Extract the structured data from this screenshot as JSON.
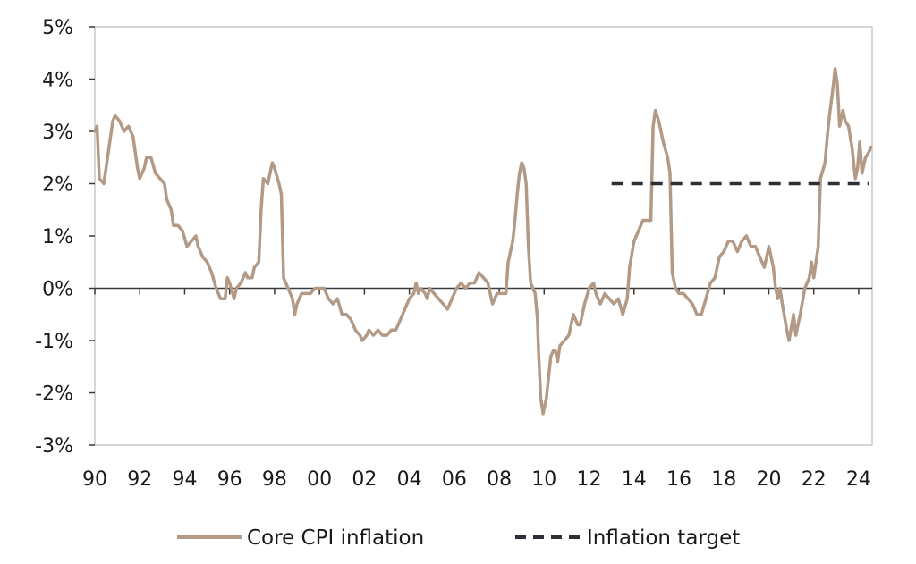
{
  "chart_data": {
    "type": "line",
    "title": "",
    "xlabel": "",
    "ylabel": "",
    "xlim": [
      1990,
      2024.6
    ],
    "ylim": [
      -3,
      5
    ],
    "grid": false,
    "legend_position": "bottom",
    "y_ticks": [
      {
        "value": 5,
        "label": "5%"
      },
      {
        "value": 4,
        "label": "4%"
      },
      {
        "value": 3,
        "label": "3%"
      },
      {
        "value": 2,
        "label": "2%"
      },
      {
        "value": 1,
        "label": "1%"
      },
      {
        "value": 0,
        "label": "0%"
      },
      {
        "value": -1,
        "label": "-1%"
      },
      {
        "value": -2,
        "label": "-2%"
      },
      {
        "value": -3,
        "label": "-3%"
      }
    ],
    "x_ticks": [
      {
        "value": 1990,
        "label": "90"
      },
      {
        "value": 1992,
        "label": "92"
      },
      {
        "value": 1994,
        "label": "94"
      },
      {
        "value": 1996,
        "label": "96"
      },
      {
        "value": 1998,
        "label": "98"
      },
      {
        "value": 2000,
        "label": "00"
      },
      {
        "value": 2002,
        "label": "02"
      },
      {
        "value": 2004,
        "label": "04"
      },
      {
        "value": 2006,
        "label": "06"
      },
      {
        "value": 2008,
        "label": "08"
      },
      {
        "value": 2010,
        "label": "10"
      },
      {
        "value": 2012,
        "label": "12"
      },
      {
        "value": 2014,
        "label": "14"
      },
      {
        "value": 2016,
        "label": "16"
      },
      {
        "value": 2018,
        "label": "18"
      },
      {
        "value": 2020,
        "label": "20"
      },
      {
        "value": 2022,
        "label": "22"
      },
      {
        "value": 2024,
        "label": "24"
      }
    ],
    "series": [
      {
        "name": "Core CPI inflation",
        "color": "#b29a86",
        "style": "solid",
        "points": [
          [
            1990.0,
            3.0
          ],
          [
            1990.1,
            3.1
          ],
          [
            1990.2,
            2.1
          ],
          [
            1990.4,
            2.0
          ],
          [
            1990.6,
            2.6
          ],
          [
            1990.8,
            3.2
          ],
          [
            1990.9,
            3.3
          ],
          [
            1991.1,
            3.2
          ],
          [
            1991.3,
            3.0
          ],
          [
            1991.5,
            3.1
          ],
          [
            1991.7,
            2.9
          ],
          [
            1991.9,
            2.3
          ],
          [
            1992.0,
            2.1
          ],
          [
            1992.2,
            2.3
          ],
          [
            1992.3,
            2.5
          ],
          [
            1992.5,
            2.5
          ],
          [
            1992.7,
            2.2
          ],
          [
            1992.9,
            2.1
          ],
          [
            1993.1,
            2.0
          ],
          [
            1993.2,
            1.7
          ],
          [
            1993.4,
            1.5
          ],
          [
            1993.5,
            1.2
          ],
          [
            1993.7,
            1.2
          ],
          [
            1993.9,
            1.1
          ],
          [
            1994.1,
            0.8
          ],
          [
            1994.3,
            0.9
          ],
          [
            1994.5,
            1.0
          ],
          [
            1994.6,
            0.8
          ],
          [
            1994.8,
            0.6
          ],
          [
            1995.0,
            0.5
          ],
          [
            1995.2,
            0.3
          ],
          [
            1995.4,
            0.0
          ],
          [
            1995.6,
            -0.2
          ],
          [
            1995.8,
            -0.2
          ],
          [
            1995.9,
            0.2
          ],
          [
            1996.0,
            0.1
          ],
          [
            1996.2,
            -0.2
          ],
          [
            1996.3,
            0.0
          ],
          [
            1996.5,
            0.1
          ],
          [
            1996.7,
            0.3
          ],
          [
            1996.8,
            0.2
          ],
          [
            1997.0,
            0.2
          ],
          [
            1997.1,
            0.4
          ],
          [
            1997.3,
            0.5
          ],
          [
            1997.4,
            1.5
          ],
          [
            1997.5,
            2.1
          ],
          [
            1997.7,
            2.0
          ],
          [
            1997.8,
            2.2
          ],
          [
            1997.9,
            2.4
          ],
          [
            1998.0,
            2.3
          ],
          [
            1998.2,
            2.0
          ],
          [
            1998.3,
            1.8
          ],
          [
            1998.4,
            0.2
          ],
          [
            1998.6,
            0.0
          ],
          [
            1998.8,
            -0.2
          ],
          [
            1998.9,
            -0.5
          ],
          [
            1999.0,
            -0.3
          ],
          [
            1999.2,
            -0.1
          ],
          [
            1999.4,
            -0.1
          ],
          [
            1999.6,
            -0.1
          ],
          [
            1999.8,
            0.0
          ],
          [
            2000.0,
            0.0
          ],
          [
            2000.2,
            0.0
          ],
          [
            2000.4,
            -0.2
          ],
          [
            2000.6,
            -0.3
          ],
          [
            2000.8,
            -0.2
          ],
          [
            2001.0,
            -0.5
          ],
          [
            2001.2,
            -0.5
          ],
          [
            2001.4,
            -0.6
          ],
          [
            2001.6,
            -0.8
          ],
          [
            2001.8,
            -0.9
          ],
          [
            2001.9,
            -1.0
          ],
          [
            2002.1,
            -0.9
          ],
          [
            2002.2,
            -0.8
          ],
          [
            2002.4,
            -0.9
          ],
          [
            2002.6,
            -0.8
          ],
          [
            2002.8,
            -0.9
          ],
          [
            2003.0,
            -0.9
          ],
          [
            2003.2,
            -0.8
          ],
          [
            2003.4,
            -0.8
          ],
          [
            2003.6,
            -0.6
          ],
          [
            2003.8,
            -0.4
          ],
          [
            2004.0,
            -0.2
          ],
          [
            2004.2,
            -0.1
          ],
          [
            2004.3,
            0.1
          ],
          [
            2004.4,
            -0.1
          ],
          [
            2004.5,
            0.0
          ],
          [
            2004.7,
            -0.1
          ],
          [
            2004.8,
            -0.2
          ],
          [
            2004.9,
            0.0
          ],
          [
            2005.1,
            -0.1
          ],
          [
            2005.3,
            -0.2
          ],
          [
            2005.5,
            -0.3
          ],
          [
            2005.7,
            -0.4
          ],
          [
            2005.9,
            -0.2
          ],
          [
            2006.1,
            0.0
          ],
          [
            2006.3,
            0.1
          ],
          [
            2006.5,
            0.0
          ],
          [
            2006.7,
            0.1
          ],
          [
            2006.9,
            0.1
          ],
          [
            2007.1,
            0.3
          ],
          [
            2007.3,
            0.2
          ],
          [
            2007.5,
            0.1
          ],
          [
            2007.7,
            -0.3
          ],
          [
            2007.9,
            -0.1
          ],
          [
            2008.1,
            -0.1
          ],
          [
            2008.3,
            -0.1
          ],
          [
            2008.4,
            0.5
          ],
          [
            2008.6,
            0.9
          ],
          [
            2008.7,
            1.3
          ],
          [
            2008.8,
            1.8
          ],
          [
            2008.9,
            2.2
          ],
          [
            2009.0,
            2.4
          ],
          [
            2009.1,
            2.3
          ],
          [
            2009.2,
            2.0
          ],
          [
            2009.3,
            0.8
          ],
          [
            2009.4,
            0.1
          ],
          [
            2009.6,
            -0.1
          ],
          [
            2009.7,
            -0.6
          ],
          [
            2009.75,
            -1.2
          ],
          [
            2009.85,
            -2.1
          ],
          [
            2009.95,
            -2.4
          ],
          [
            2010.1,
            -2.1
          ],
          [
            2010.2,
            -1.7
          ],
          [
            2010.3,
            -1.3
          ],
          [
            2010.4,
            -1.2
          ],
          [
            2010.5,
            -1.2
          ],
          [
            2010.6,
            -1.4
          ],
          [
            2010.7,
            -1.1
          ],
          [
            2010.9,
            -1.0
          ],
          [
            2011.1,
            -0.9
          ],
          [
            2011.3,
            -0.5
          ],
          [
            2011.5,
            -0.7
          ],
          [
            2011.6,
            -0.7
          ],
          [
            2011.8,
            -0.3
          ],
          [
            2012.0,
            0.0
          ],
          [
            2012.2,
            0.1
          ],
          [
            2012.3,
            -0.1
          ],
          [
            2012.5,
            -0.3
          ],
          [
            2012.7,
            -0.1
          ],
          [
            2012.9,
            -0.2
          ],
          [
            2013.1,
            -0.3
          ],
          [
            2013.3,
            -0.2
          ],
          [
            2013.5,
            -0.5
          ],
          [
            2013.7,
            -0.2
          ],
          [
            2013.8,
            0.4
          ],
          [
            2014.0,
            0.9
          ],
          [
            2014.2,
            1.1
          ],
          [
            2014.4,
            1.3
          ],
          [
            2014.6,
            1.3
          ],
          [
            2014.75,
            1.3
          ],
          [
            2014.85,
            3.1
          ],
          [
            2014.95,
            3.4
          ],
          [
            2015.1,
            3.2
          ],
          [
            2015.3,
            2.8
          ],
          [
            2015.5,
            2.5
          ],
          [
            2015.6,
            2.2
          ],
          [
            2015.7,
            0.3
          ],
          [
            2015.85,
            0.0
          ],
          [
            2016.0,
            -0.1
          ],
          [
            2016.2,
            -0.1
          ],
          [
            2016.4,
            -0.2
          ],
          [
            2016.6,
            -0.3
          ],
          [
            2016.8,
            -0.5
          ],
          [
            2017.0,
            -0.5
          ],
          [
            2017.2,
            -0.2
          ],
          [
            2017.4,
            0.1
          ],
          [
            2017.6,
            0.2
          ],
          [
            2017.8,
            0.6
          ],
          [
            2018.0,
            0.7
          ],
          [
            2018.2,
            0.9
          ],
          [
            2018.4,
            0.9
          ],
          [
            2018.6,
            0.7
          ],
          [
            2018.8,
            0.9
          ],
          [
            2019.0,
            1.0
          ],
          [
            2019.2,
            0.8
          ],
          [
            2019.4,
            0.8
          ],
          [
            2019.6,
            0.6
          ],
          [
            2019.8,
            0.4
          ],
          [
            2019.9,
            0.6
          ],
          [
            2020.0,
            0.8
          ],
          [
            2020.2,
            0.4
          ],
          [
            2020.3,
            0.0
          ],
          [
            2020.4,
            -0.2
          ],
          [
            2020.5,
            0.0
          ],
          [
            2020.6,
            -0.3
          ],
          [
            2020.8,
            -0.8
          ],
          [
            2020.9,
            -1.0
          ],
          [
            2021.1,
            -0.5
          ],
          [
            2021.2,
            -0.9
          ],
          [
            2021.4,
            -0.5
          ],
          [
            2021.6,
            0.0
          ],
          [
            2021.8,
            0.2
          ],
          [
            2021.9,
            0.5
          ],
          [
            2022.0,
            0.2
          ],
          [
            2022.1,
            0.5
          ],
          [
            2022.2,
            0.8
          ],
          [
            2022.3,
            2.1
          ],
          [
            2022.5,
            2.4
          ],
          [
            2022.6,
            2.9
          ],
          [
            2022.7,
            3.3
          ],
          [
            2022.85,
            3.8
          ],
          [
            2022.95,
            4.2
          ],
          [
            2023.05,
            3.9
          ],
          [
            2023.15,
            3.1
          ],
          [
            2023.3,
            3.4
          ],
          [
            2023.4,
            3.2
          ],
          [
            2023.55,
            3.1
          ],
          [
            2023.7,
            2.7
          ],
          [
            2023.85,
            2.1
          ],
          [
            2023.95,
            2.3
          ],
          [
            2024.05,
            2.8
          ],
          [
            2024.15,
            2.2
          ],
          [
            2024.3,
            2.5
          ],
          [
            2024.45,
            2.6
          ],
          [
            2024.55,
            2.7
          ]
        ]
      },
      {
        "name": "Inflation target",
        "color": "#2b2f36",
        "style": "dashed",
        "points": [
          [
            2013.0,
            2.0
          ],
          [
            2024.45,
            2.0
          ]
        ]
      }
    ]
  },
  "legend": {
    "items": [
      {
        "label": "Core CPI inflation",
        "color": "#b29a86",
        "style": "solid"
      },
      {
        "label": "Inflation target",
        "color": "#2b2f36",
        "style": "dashed"
      }
    ]
  }
}
